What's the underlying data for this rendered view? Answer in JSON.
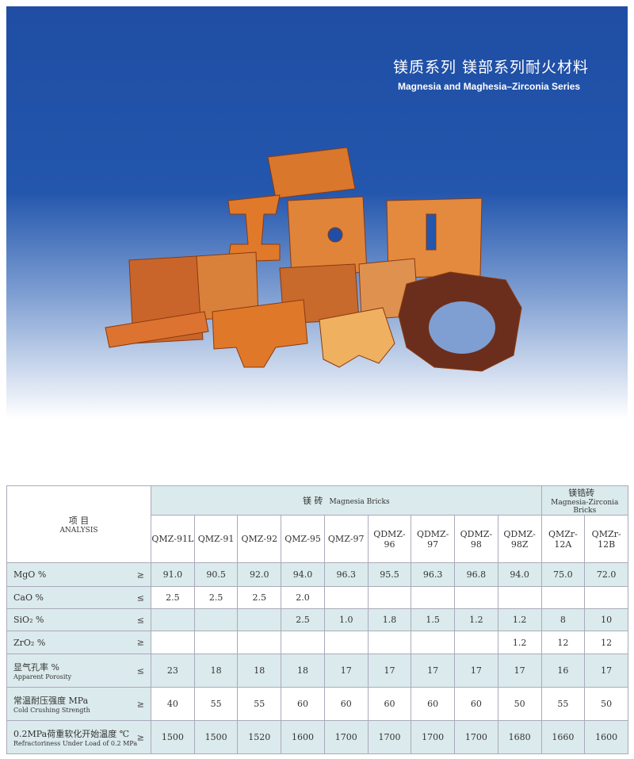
{
  "header": {
    "title_cn": "镁质系列 镁部系列耐火材料",
    "title_en": "Magnesia and Maghesia–Zirconia Series"
  },
  "table": {
    "analysis_cn": "项 目",
    "analysis_en": "ANALYSIS",
    "groups": [
      {
        "cn": "镁 砖",
        "en": "Magnesia Bricks",
        "span": 9
      },
      {
        "cn": "镁锆砖",
        "en": "Magnesia-Zirconia Bricks",
        "span": 2
      }
    ],
    "columns": [
      "QMZ-91L",
      "QMZ-91",
      "QMZ-92",
      "QMZ-95",
      "QMZ-97",
      "QDMZ-96",
      "QDMZ-97",
      "QDMZ-98",
      "QDMZ-98Z",
      "QMZr-12A",
      "QMZr-12B"
    ],
    "rows": [
      {
        "label": "MgO %",
        "op": "≥",
        "values": [
          "91.0",
          "90.5",
          "92.0",
          "94.0",
          "96.3",
          "95.5",
          "96.3",
          "96.8",
          "94.0",
          "75.0",
          "72.0"
        ]
      },
      {
        "label": "CaO %",
        "op": "≤",
        "values": [
          "2.5",
          "2.5",
          "2.5",
          "2.0",
          null,
          null,
          null,
          null,
          null,
          null,
          null
        ]
      },
      {
        "label": "SiO₂ %",
        "op": "≤",
        "values": [
          null,
          null,
          null,
          "2.5",
          "1.0",
          "1.8",
          "1.5",
          "1.2",
          "1.2",
          "8",
          "10"
        ]
      },
      {
        "label": "ZrO₂ %",
        "op": "≥",
        "values": [
          null,
          null,
          null,
          null,
          null,
          null,
          null,
          null,
          "1.2",
          "12",
          "12"
        ]
      },
      {
        "label": "显气孔率 %",
        "sublabel": "Apparent Porosity",
        "op": "≤",
        "values": [
          "23",
          "18",
          "18",
          "18",
          "17",
          "17",
          "17",
          "17",
          "17",
          "16",
          "17"
        ]
      },
      {
        "label": "常温耐压强度 MPa",
        "sublabel": "Cold Crushing Strength",
        "op": "≥",
        "values": [
          "40",
          "55",
          "55",
          "60",
          "60",
          "60",
          "60",
          "60",
          "50",
          "55",
          "50"
        ]
      },
      {
        "label": "0.2MPa荷重软化开始温度 ℃",
        "sublabel": "Refractoriness Under Load of 0.2 MPa",
        "op": "≥",
        "values": [
          "1500",
          "1500",
          "1520",
          "1600",
          "1700",
          "1700",
          "1700",
          "1700",
          "1680",
          "1660",
          "1600"
        ]
      }
    ]
  }
}
